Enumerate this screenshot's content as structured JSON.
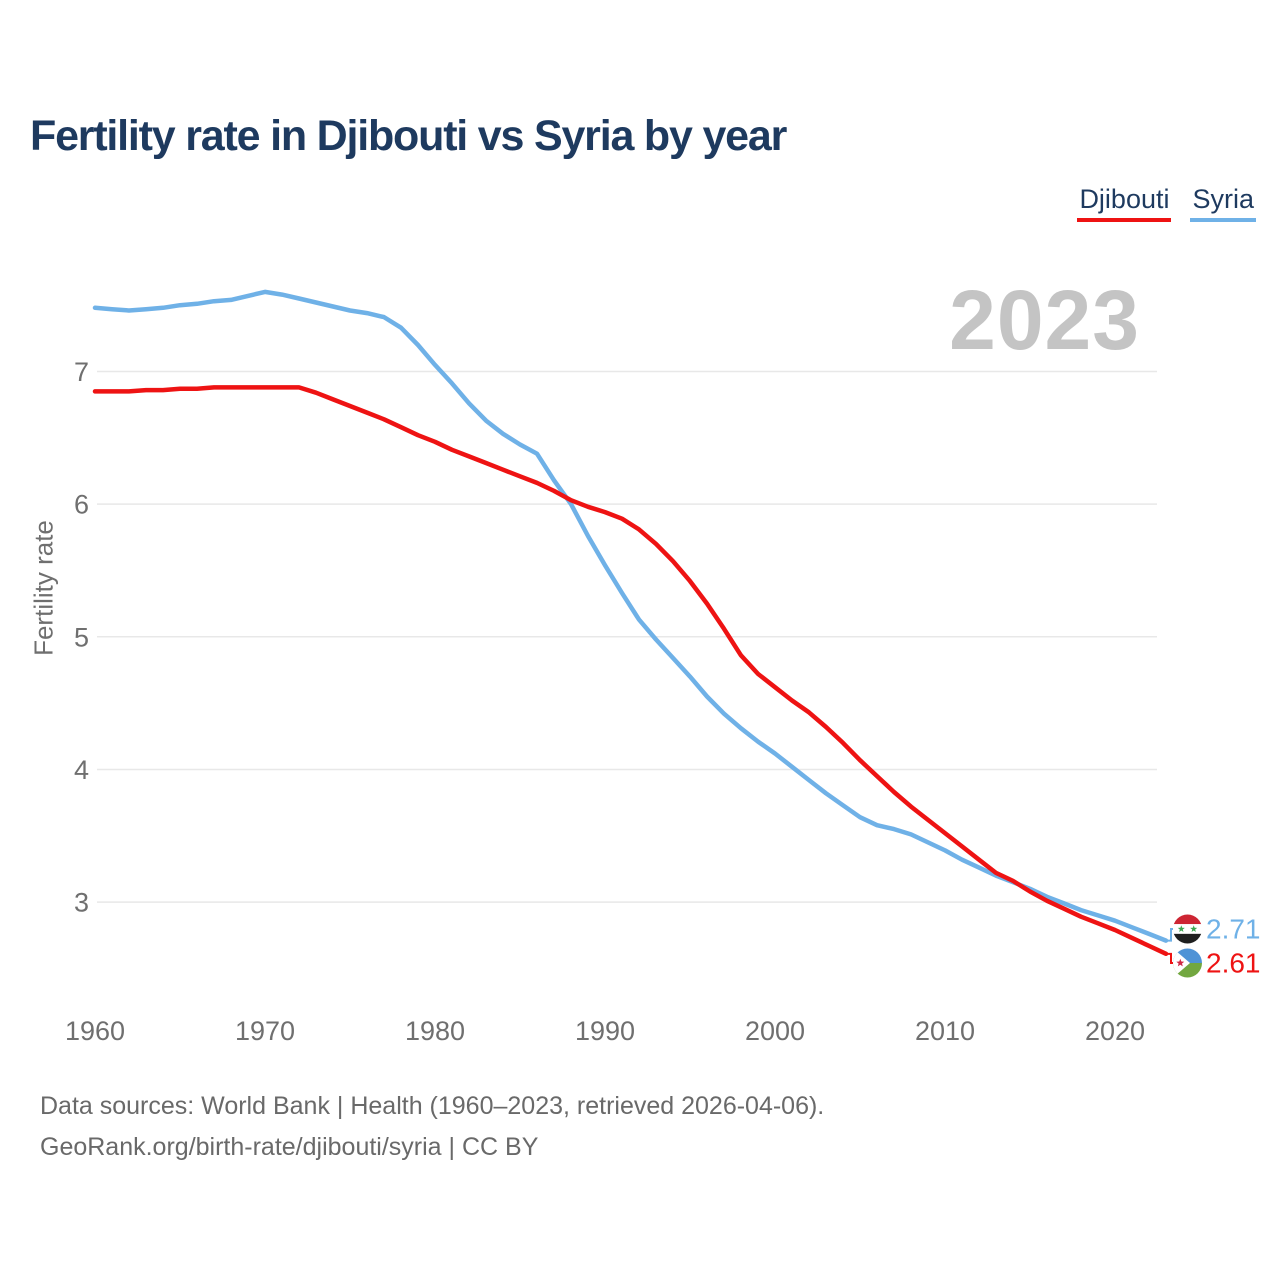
{
  "header": {
    "title": "Fertility rate in Djibouti vs Syria by year"
  },
  "legend": {
    "items": [
      {
        "label": "Djibouti",
        "color": "#ee1313"
      },
      {
        "label": "Syria",
        "color": "#6fb1e7"
      }
    ]
  },
  "watermark": "2023",
  "footer": {
    "line1": "Data sources: World Bank | Health (1960–2023, retrieved 2026-04-06).",
    "line2": "GeoRank.org/birth-rate/djibouti/syria | CC BY"
  },
  "chart_data": {
    "type": "line",
    "title": "Fertility rate in Djibouti vs Syria by year",
    "xlabel": "",
    "ylabel": "Fertility rate",
    "grid": "horizontal-only",
    "legend_position": "top-right",
    "xlim": [
      1958,
      2026
    ],
    "ylim": [
      2.4,
      7.8
    ],
    "x_ticks": [
      1960,
      1970,
      1980,
      1990,
      2000,
      2010,
      2020
    ],
    "y_ticks": [
      3,
      4,
      5,
      6,
      7
    ],
    "years": [
      1960,
      1961,
      1962,
      1963,
      1964,
      1965,
      1966,
      1967,
      1968,
      1969,
      1970,
      1971,
      1972,
      1973,
      1974,
      1975,
      1976,
      1977,
      1978,
      1979,
      1980,
      1981,
      1982,
      1983,
      1984,
      1985,
      1986,
      1987,
      1988,
      1989,
      1990,
      1991,
      1992,
      1993,
      1994,
      1995,
      1996,
      1997,
      1998,
      1999,
      2000,
      2001,
      2002,
      2003,
      2004,
      2005,
      2006,
      2007,
      2008,
      2009,
      2010,
      2011,
      2012,
      2013,
      2014,
      2015,
      2016,
      2017,
      2018,
      2019,
      2020,
      2021,
      2022,
      2023
    ],
    "series": [
      {
        "name": "Syria",
        "color": "#6fb1e7",
        "end_label": "2.71",
        "flag": "syria",
        "values": [
          7.48,
          7.47,
          7.46,
          7.47,
          7.48,
          7.5,
          7.51,
          7.53,
          7.54,
          7.57,
          7.6,
          7.58,
          7.55,
          7.52,
          7.49,
          7.46,
          7.44,
          7.41,
          7.33,
          7.2,
          7.05,
          6.91,
          6.76,
          6.63,
          6.53,
          6.45,
          6.38,
          6.18,
          6.0,
          5.76,
          5.54,
          5.33,
          5.13,
          4.98,
          4.84,
          4.7,
          4.55,
          4.42,
          4.31,
          4.21,
          4.12,
          4.02,
          3.92,
          3.82,
          3.73,
          3.64,
          3.58,
          3.55,
          3.51,
          3.45,
          3.39,
          3.32,
          3.26,
          3.2,
          3.15,
          3.1,
          3.04,
          2.99,
          2.94,
          2.9,
          2.86,
          2.81,
          2.76,
          2.71
        ]
      },
      {
        "name": "Djibouti",
        "color": "#ee1313",
        "end_label": "2.61",
        "flag": "djibouti",
        "values": [
          6.85,
          6.85,
          6.85,
          6.86,
          6.86,
          6.87,
          6.87,
          6.88,
          6.88,
          6.88,
          6.88,
          6.88,
          6.88,
          6.84,
          6.79,
          6.74,
          6.69,
          6.64,
          6.58,
          6.52,
          6.47,
          6.41,
          6.36,
          6.31,
          6.26,
          6.21,
          6.16,
          6.1,
          6.03,
          5.98,
          5.94,
          5.89,
          5.81,
          5.7,
          5.57,
          5.42,
          5.25,
          5.06,
          4.86,
          4.72,
          4.62,
          4.52,
          4.43,
          4.32,
          4.2,
          4.07,
          3.95,
          3.83,
          3.72,
          3.62,
          3.52,
          3.42,
          3.32,
          3.22,
          3.16,
          3.08,
          3.01,
          2.95,
          2.89,
          2.84,
          2.79,
          2.73,
          2.67,
          2.61
        ]
      }
    ],
    "flag_colors": {
      "syria": {
        "top": "#cd2533",
        "middle": "#ffffff",
        "bottom": "#1f1f1f",
        "stars": "#3fa652"
      },
      "djibouti": {
        "top": "#4f93d6",
        "bottom": "#72a740",
        "triangle": "#ffffff",
        "star": "#d02945"
      }
    },
    "axis_text_color": "#6f6f6f",
    "gridline_color": "#e8e8e8"
  }
}
